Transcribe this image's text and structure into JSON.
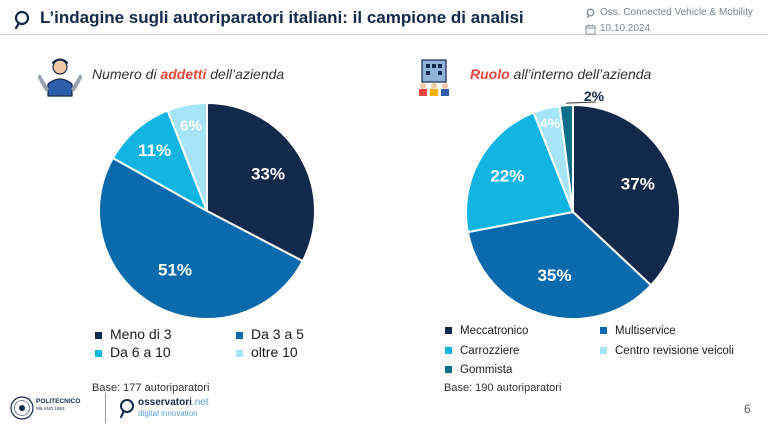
{
  "header": {
    "title": "L’indagine sugli autoriparatori italiani: il campione di analisi",
    "source": "Oss. Connected Vehicle & Mobility",
    "date": "10.10.2024"
  },
  "chart_data": [
    {
      "type": "pie",
      "title_pre": "Numero di ",
      "title_highlight": "addetti",
      "title_post": " dell’azienda",
      "slices": [
        {
          "label": "Meno di 3",
          "value": 33,
          "display": "33%",
          "color": "#13294b"
        },
        {
          "label": "Da 3 a 5",
          "value": 51,
          "display": "51%",
          "color": "#0a6aab"
        },
        {
          "label": "Da 6 a 10",
          "value": 11,
          "display": "11%",
          "color": "#12b4e2"
        },
        {
          "label": "oltre 10",
          "value": 6,
          "display": "6%",
          "color": "#a6e4f7"
        }
      ],
      "legend_position": "bottom",
      "base": "Base: 177 autoriparatori"
    },
    {
      "type": "pie",
      "title_pre": "",
      "title_highlight": "Ruolo",
      "title_post": " all’interno dell’azienda",
      "slices": [
        {
          "label": "Meccatronico",
          "value": 37,
          "display": "37%",
          "color": "#13294b"
        },
        {
          "label": "Multiservice",
          "value": 35,
          "display": "35%",
          "color": "#0a6aab"
        },
        {
          "label": "Carrozziere",
          "value": 22,
          "display": "22%",
          "color": "#12b4e2"
        },
        {
          "label": "Centro revisione veicoli",
          "value": 4,
          "display": "4%",
          "color": "#a6e4f7"
        },
        {
          "label": "Gommista",
          "value": 2,
          "display": "2%",
          "color": "#0e6f8a"
        }
      ],
      "legend_position": "bottom",
      "base": "Base: 190 autoriparatori"
    }
  ],
  "footer": {
    "university": "POLITECNICO",
    "university_sub": "MILANO 1863",
    "observatory_name": "osservatori",
    "observatory_tld": ".net",
    "observatory_sub": "digital innovation",
    "page": "6"
  }
}
